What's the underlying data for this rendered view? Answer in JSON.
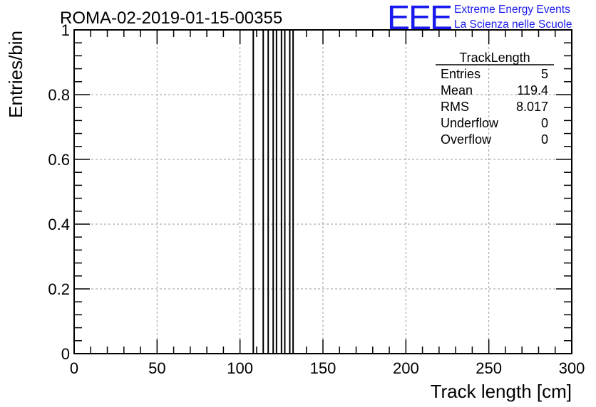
{
  "colors": {
    "logo": "#1a1aee",
    "grid": "#9a9a9a",
    "histogram": "#000000",
    "axis": "#000000"
  },
  "logo": {
    "mark": "EEE",
    "line1": "Extreme Energy Events",
    "line2": "La Scienza nelle Scuole"
  },
  "chart_data": {
    "type": "bar",
    "title": "ROMA-02-2019-01-15-00355",
    "xlabel": "Track length [cm]",
    "ylabel": "Entries/bin",
    "xlim": [
      0,
      300
    ],
    "ylim": [
      0,
      1
    ],
    "grid": true,
    "x_ticks": [
      "0",
      "50",
      "100",
      "150",
      "200",
      "250",
      "300"
    ],
    "y_ticks": [
      "0",
      "0.2",
      "0.4",
      "0.6",
      "0.8",
      "1"
    ],
    "bins": [
      {
        "x0": 108,
        "x1": 114,
        "value": 1
      },
      {
        "x0": 117,
        "x1": 120,
        "value": 1
      },
      {
        "x0": 122,
        "x1": 125,
        "value": 1
      },
      {
        "x0": 127,
        "x1": 130,
        "value": 1
      },
      {
        "x0": 130,
        "x1": 132,
        "value": 1
      }
    ],
    "stats": {
      "name": "TrackLength",
      "rows": [
        {
          "label": "Entries",
          "value": "5"
        },
        {
          "label": "Mean",
          "value": "119.4"
        },
        {
          "label": "RMS",
          "value": "8.017"
        },
        {
          "label": "Underflow",
          "value": "0"
        },
        {
          "label": "Overflow",
          "value": "0"
        }
      ],
      "position": "top-right"
    }
  }
}
